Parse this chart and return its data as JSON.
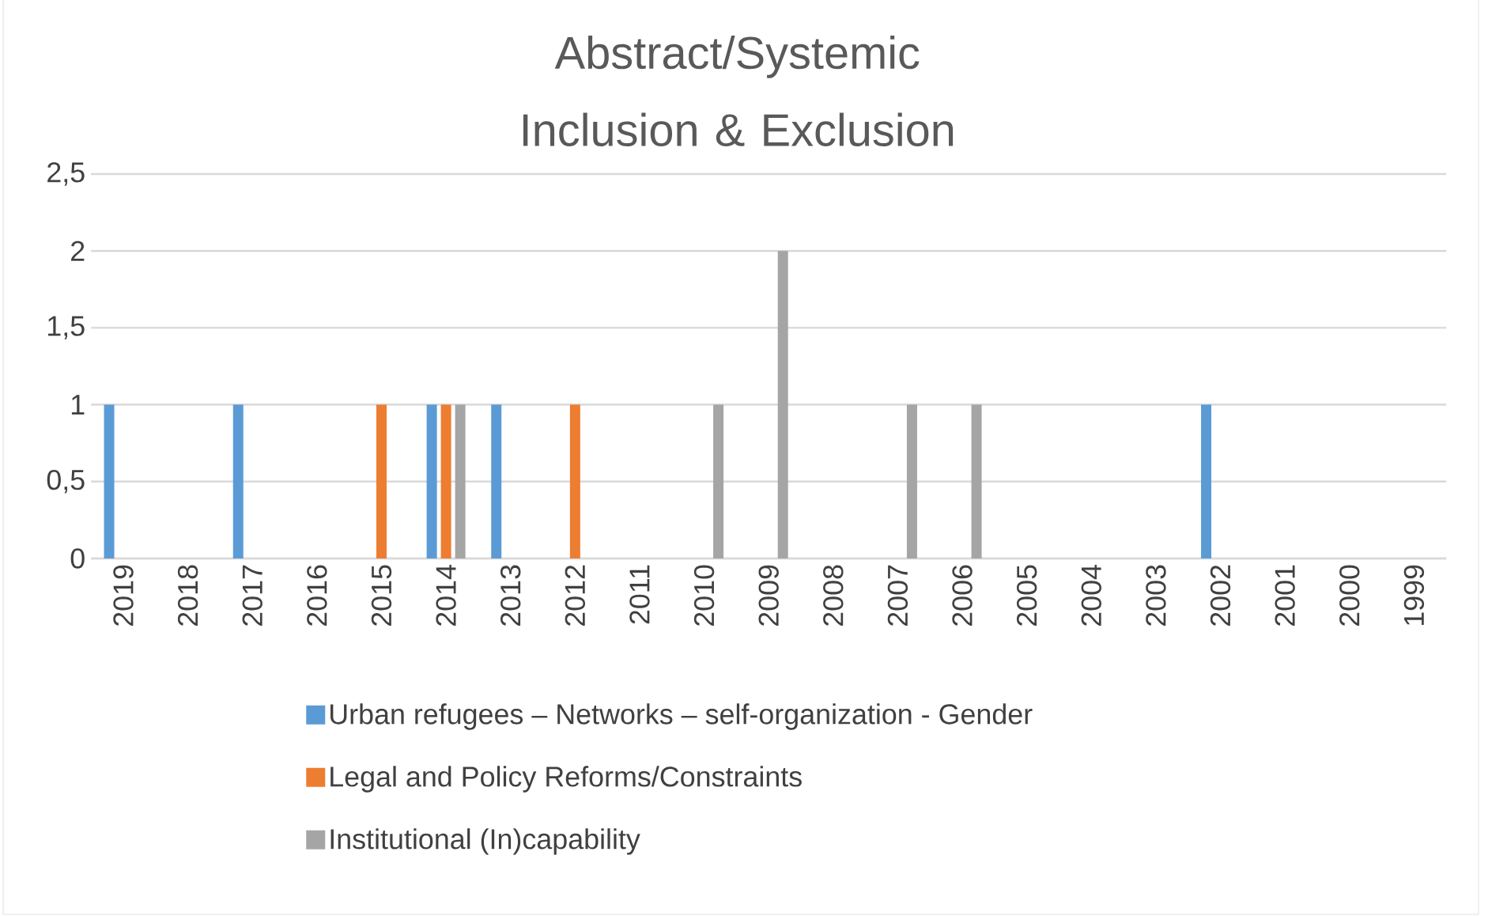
{
  "chart_data": {
    "type": "bar",
    "title": "Abstract/Systemic Inclusion & Exclusion",
    "categories": [
      "2019",
      "2018",
      "2017",
      "2016",
      "2015",
      "2014",
      "2013",
      "2012",
      "2011",
      "2010",
      "2009",
      "2008",
      "2007",
      "2006",
      "2005",
      "2004",
      "2003",
      "2002",
      "2001",
      "2000",
      "1999"
    ],
    "series": [
      {
        "name": "Urban refugees – Networks – self-organization - Gender",
        "color": "#5b9bd5",
        "values": [
          1,
          null,
          1,
          null,
          null,
          1,
          1,
          null,
          null,
          null,
          null,
          null,
          null,
          null,
          null,
          null,
          null,
          1,
          null,
          null,
          null
        ]
      },
      {
        "name": "Legal and Policy Reforms/Constraints",
        "color": "#ed7d31",
        "values": [
          null,
          null,
          null,
          null,
          1,
          1,
          null,
          1,
          null,
          null,
          null,
          null,
          null,
          null,
          null,
          null,
          null,
          null,
          null,
          null,
          null
        ]
      },
      {
        "name": "Institutional (In)capability",
        "color": "#a5a5a5",
        "values": [
          null,
          null,
          null,
          null,
          null,
          1,
          null,
          null,
          null,
          1,
          2,
          null,
          1,
          1,
          null,
          null,
          null,
          null,
          null,
          null,
          null
        ]
      }
    ],
    "ylim": [
      0,
      2.5
    ],
    "yticks": [
      0,
      {
        "value": 0.5,
        "label": "0,5"
      },
      1,
      {
        "value": 1.5,
        "label": "1,5"
      },
      2,
      {
        "value": 2.5,
        "label": "2,5"
      }
    ],
    "grid": "y",
    "legend": "bottom"
  }
}
